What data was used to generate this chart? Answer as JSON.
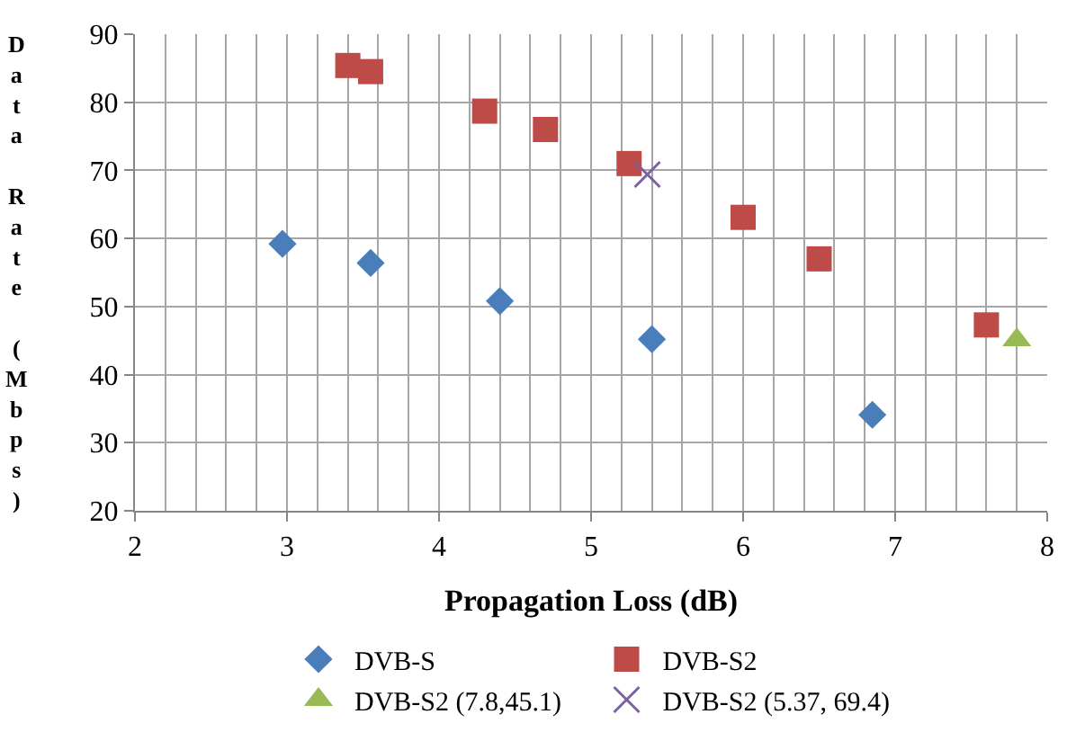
{
  "chart_data": {
    "type": "scatter",
    "xlabel": "Propagation Loss (dB)",
    "ylabel": "Data Rate (Mbps)",
    "xlim": [
      2,
      8
    ],
    "xticks": [
      2,
      3,
      4,
      5,
      6,
      7,
      8
    ],
    "ylim": [
      20,
      90
    ],
    "yticks": [
      20,
      30,
      40,
      50,
      60,
      70,
      80,
      90
    ],
    "grid": true,
    "legend": "bottom",
    "series": [
      {
        "name": "DVB-S",
        "color": "#4a7ebb",
        "marker": "diamond",
        "x": [
          2.97,
          3.55,
          4.4,
          5.4,
          6.85
        ],
        "values": [
          59.2,
          56.4,
          50.8,
          45.2,
          34.1
        ]
      },
      {
        "name": "DVB-S2",
        "color": "#be4b48",
        "marker": "square",
        "x": [
          3.4,
          3.55,
          4.3,
          4.7,
          5.25,
          6.0,
          6.5,
          7.6
        ],
        "values": [
          85.4,
          84.5,
          78.7,
          76.0,
          71.0,
          63.1,
          57.0,
          47.3
        ]
      },
      {
        "name": "DVB-S2 (7.8,45.1)",
        "color": "#98b954",
        "marker": "triangle",
        "x": [
          7.8
        ],
        "values": [
          45.1
        ]
      },
      {
        "name": "DVB-S2 (5.37, 69.4)",
        "color": "#7d60a0",
        "marker": "cross",
        "x": [
          5.37
        ],
        "values": [
          69.4
        ]
      }
    ]
  }
}
